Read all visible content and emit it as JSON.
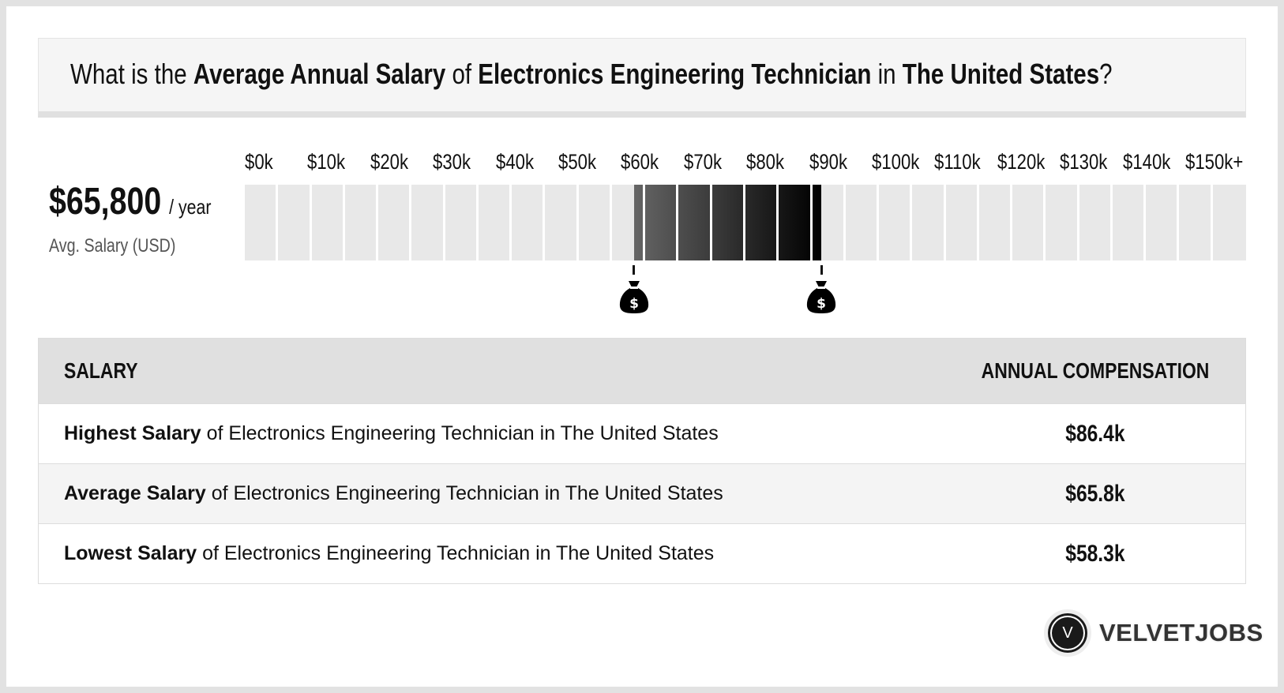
{
  "header": {
    "q1": "What is the ",
    "b1": "Average Annual Salary",
    "q2": " of ",
    "b2": "Electronics Engineering Technician",
    "q3": " in ",
    "b3": "The United States",
    "q4": "?"
  },
  "summary": {
    "value": "$65,800",
    "per": "/ year",
    "label": "Avg. Salary (USD)"
  },
  "chart_data": {
    "type": "range-bar",
    "tick_labels": [
      "$0k",
      "$10k",
      "$20k",
      "$30k",
      "$40k",
      "$50k",
      "$60k",
      "$70k",
      "$80k",
      "$90k",
      "$100k",
      "$110k",
      "$120k",
      "$130k",
      "$140k",
      "$150k+"
    ],
    "xlim": [
      0,
      150
    ],
    "segment_step": 5,
    "range": {
      "low": 58.3,
      "high": 86.4
    },
    "markers": [
      {
        "value": 58.3,
        "icon": "money-bag-icon"
      },
      {
        "value": 86.4,
        "icon": "money-bag-icon"
      }
    ],
    "colors": {
      "empty": "#e8e8e8",
      "fill_start": "#666666",
      "fill_end": "#000000"
    }
  },
  "table": {
    "headers": [
      "SALARY",
      "ANNUAL COMPENSATION"
    ],
    "rows": [
      {
        "bold": "Highest Salary",
        "rest": " of Electronics Engineering Technician in The United States",
        "value": "$86.4k"
      },
      {
        "bold": "Average Salary",
        "rest": " of Electronics Engineering Technician in The United States",
        "value": "$65.8k"
      },
      {
        "bold": "Lowest Salary",
        "rest": " of Electronics Engineering Technician in The United States",
        "value": "$58.3k"
      }
    ]
  },
  "logo": {
    "letter": "V",
    "name": "VELVETJOBS"
  }
}
